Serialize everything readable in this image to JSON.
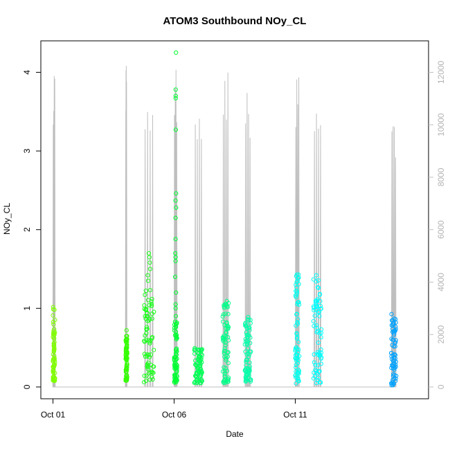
{
  "chart_data": {
    "type": "scatter",
    "title": "ATOM3 Southbound NOy_CL",
    "xlabel": "Date",
    "ylabel": "NOy_CL",
    "x_range": [
      "2017-09-30T12:00",
      "2017-10-16T12:00"
    ],
    "ylim": [
      -0.15,
      4.4
    ],
    "x_ticks": [
      {
        "label": "Oct 01",
        "value": "2017-10-01"
      },
      {
        "label": "Oct 06",
        "value": "2017-10-06"
      },
      {
        "label": "Oct 11",
        "value": "2017-10-11"
      }
    ],
    "y_ticks": [
      0,
      1,
      2,
      3,
      4
    ],
    "secondary_axis": {
      "color": "#bebebe",
      "ylim": [
        -450,
        13200
      ],
      "ticks": [
        0,
        2000,
        4000,
        6000,
        8000,
        10000,
        12000
      ]
    },
    "altitude_segments": [
      {
        "start": "2017-10-01T00:00",
        "end": "2017-10-01T02:00",
        "peak": 12200
      },
      {
        "start": "2017-10-04T00:00",
        "end": "2017-10-04T01:00",
        "peak": 12700
      },
      {
        "start": "2017-10-04T18:00",
        "end": "2017-10-05T04:00",
        "peak": 10700
      },
      {
        "start": "2017-10-06T00:00",
        "end": "2017-10-06T03:00",
        "peak": 12300
      },
      {
        "start": "2017-10-06T20:00",
        "end": "2017-10-07T04:00",
        "peak": 11200
      },
      {
        "start": "2017-10-08T00:00",
        "end": "2017-10-08T06:00",
        "peak": 12400
      },
      {
        "start": "2017-10-08T22:00",
        "end": "2017-10-09T04:00",
        "peak": 11300
      },
      {
        "start": "2017-10-11T00:00",
        "end": "2017-10-11T04:00",
        "peak": 11900
      },
      {
        "start": "2017-10-11T18:00",
        "end": "2017-10-12T02:00",
        "peak": 10800
      },
      {
        "start": "2017-10-14T23:00",
        "end": "2017-10-15T04:00",
        "peak": 10200
      }
    ],
    "series": [
      {
        "color": "#7fff00",
        "x_start": "2017-10-01T00:00",
        "x_end": "2017-10-01T02:00",
        "min": 0.07,
        "max": 1.05,
        "outliers": []
      },
      {
        "color": "#33ff00",
        "x_start": "2017-10-04T00:00",
        "x_end": "2017-10-04T01:30",
        "min": 0.08,
        "max": 0.65,
        "outliers": [
          0.72
        ]
      },
      {
        "color": "#1aff1a",
        "x_start": "2017-10-04T18:00",
        "x_end": "2017-10-05T04:00",
        "min": 0.05,
        "max": 1.27,
        "outliers": [
          1.35,
          1.42,
          1.5,
          1.58,
          1.65,
          1.7
        ]
      },
      {
        "color": "#00ff33",
        "x_start": "2017-10-06T00:00",
        "x_end": "2017-10-06T03:00",
        "min": 0.05,
        "max": 0.85,
        "outliers": [
          0.9,
          1.0,
          1.05,
          1.2,
          1.4,
          1.6,
          1.65,
          1.7,
          1.88,
          2.15,
          2.28,
          2.37,
          2.46,
          3.27,
          3.67,
          3.7,
          3.78,
          4.25
        ]
      },
      {
        "color": "#00ff55",
        "x_start": "2017-10-06T20:00",
        "x_end": "2017-10-07T04:00",
        "min": 0.05,
        "max": 0.5,
        "outliers": []
      },
      {
        "color": "#00ff88",
        "x_start": "2017-10-08T00:00",
        "x_end": "2017-10-08T06:00",
        "min": 0.05,
        "max": 1.12,
        "outliers": []
      },
      {
        "color": "#00ffaa",
        "x_start": "2017-10-08T22:00",
        "x_end": "2017-10-09T04:00",
        "min": 0.07,
        "max": 0.92,
        "outliers": []
      },
      {
        "color": "#00ffee",
        "x_start": "2017-10-11T00:00",
        "x_end": "2017-10-11T04:00",
        "min": 0.04,
        "max": 1.45,
        "outliers": []
      },
      {
        "color": "#00ffff",
        "x_start": "2017-10-11T18:00",
        "x_end": "2017-10-12T02:00",
        "min": 0.05,
        "max": 1.42,
        "outliers": []
      },
      {
        "color": "#00a3ff",
        "x_start": "2017-10-14T23:00",
        "x_end": "2017-10-15T04:00",
        "min": 0.02,
        "max": 0.93,
        "outliers": []
      }
    ]
  }
}
